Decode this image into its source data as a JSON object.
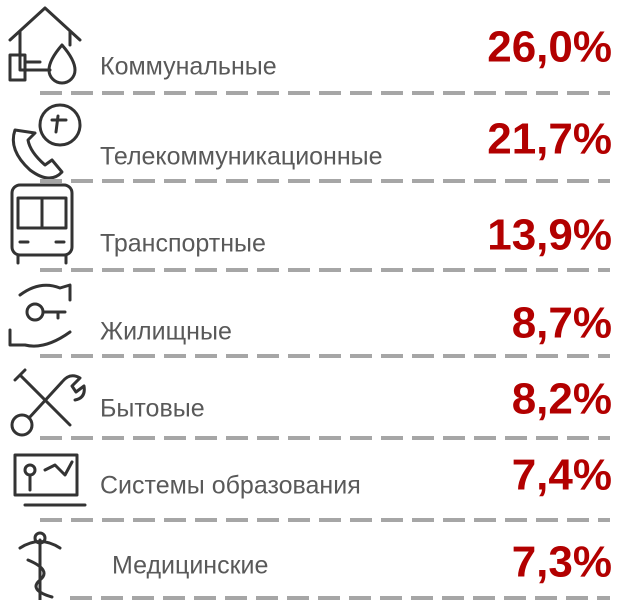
{
  "items": [
    {
      "label": "Коммунальные",
      "value": "26,0%"
    },
    {
      "label": "Телекоммуникационные",
      "value": "21,7%"
    },
    {
      "label": "Транспортные",
      "value": "13,9%"
    },
    {
      "label": "Жилищные",
      "value": "8,7%"
    },
    {
      "label": "Бытовые",
      "value": "8,2%"
    },
    {
      "label": "Системы образования",
      "value": "7,4%"
    },
    {
      "label": "Медицинские",
      "value": "7,3%"
    }
  ]
}
